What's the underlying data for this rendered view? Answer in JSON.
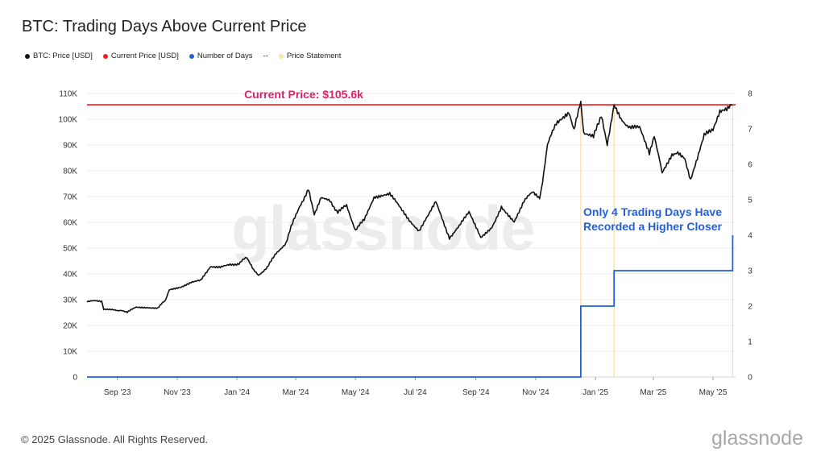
{
  "title": "BTC: Trading Days Above Current Price",
  "legend": [
    {
      "label": "BTC: Price [USD]",
      "color": "#111111",
      "marker": "dot"
    },
    {
      "label": "Current Price [USD]",
      "color": "#e8221f",
      "marker": "dot"
    },
    {
      "label": "Number of Days",
      "color": "#1f5fe0",
      "marker": "dot"
    },
    {
      "label": "--",
      "color": "#444444",
      "marker": "none"
    },
    {
      "label": "Price Statement",
      "color": "#f7e3b0",
      "marker": "dot"
    }
  ],
  "watermark": "glassnode",
  "footer": "© 2025 Glassnode. All Rights Reserved.",
  "brand": "glassnode",
  "colors": {
    "price": "#111111",
    "current": "#e8221f",
    "days": "#1f5fe0",
    "statement": "#f5d79a",
    "current_text": "#e0206a"
  },
  "chart_data": {
    "type": "line",
    "title": "BTC: Trading Days Above Current Price",
    "x_ticks": [
      "Sep '23",
      "Nov '23",
      "Jan '24",
      "Mar '24",
      "May '24",
      "Jul '24",
      "Sep '24",
      "Nov '24",
      "Jan '25",
      "Mar '25",
      "May '25"
    ],
    "x_tick_positions": [
      "2023-09-01",
      "2023-11-01",
      "2024-01-01",
      "2024-03-01",
      "2024-05-01",
      "2024-07-01",
      "2024-09-01",
      "2024-11-01",
      "2025-01-01",
      "2025-03-01",
      "2025-05-01"
    ],
    "xlim": [
      "2023-08-01",
      "2025-05-24"
    ],
    "y_left_ticks": [
      "0",
      "10K",
      "20K",
      "30K",
      "40K",
      "50K",
      "60K",
      "70K",
      "80K",
      "90K",
      "100K",
      "110K"
    ],
    "y_left_lim": [
      0,
      110000
    ],
    "y_right_ticks": [
      "0",
      "1",
      "2",
      "3",
      "4",
      "5",
      "6",
      "7",
      "8"
    ],
    "y_right_lim": [
      0,
      8
    ],
    "grid": "horizontal",
    "current_price": 105600,
    "annotations": {
      "current_price": "Current Price: $105.6k",
      "days_line1": "Only 4 Trading Days Have",
      "days_line2": "Recorded a Higher Closer"
    },
    "series": [
      {
        "name": "BTC: Price [USD]",
        "axis": "left",
        "points": [
          [
            "2023-08-01",
            29300
          ],
          [
            "2023-08-10",
            29500
          ],
          [
            "2023-08-16",
            29200
          ],
          [
            "2023-08-18",
            26200
          ],
          [
            "2023-08-28",
            26000
          ],
          [
            "2023-09-05",
            25800
          ],
          [
            "2023-09-11",
            25100
          ],
          [
            "2023-09-20",
            27100
          ],
          [
            "2023-10-01",
            27000
          ],
          [
            "2023-10-12",
            26800
          ],
          [
            "2023-10-20",
            29700
          ],
          [
            "2023-10-24",
            34000
          ],
          [
            "2023-11-05",
            35000
          ],
          [
            "2023-11-15",
            36500
          ],
          [
            "2023-11-25",
            37500
          ],
          [
            "2023-12-05",
            43000
          ],
          [
            "2023-12-15",
            42500
          ],
          [
            "2023-12-25",
            43500
          ],
          [
            "2024-01-03",
            44000
          ],
          [
            "2024-01-11",
            46500
          ],
          [
            "2024-01-18",
            41500
          ],
          [
            "2024-01-23",
            39500
          ],
          [
            "2024-02-01",
            42500
          ],
          [
            "2024-02-10",
            48000
          ],
          [
            "2024-02-20",
            52000
          ],
          [
            "2024-02-28",
            61000
          ],
          [
            "2024-03-05",
            66000
          ],
          [
            "2024-03-14",
            73000
          ],
          [
            "2024-03-20",
            63000
          ],
          [
            "2024-03-27",
            70000
          ],
          [
            "2024-04-05",
            68000
          ],
          [
            "2024-04-13",
            64000
          ],
          [
            "2024-04-22",
            66500
          ],
          [
            "2024-05-01",
            57000
          ],
          [
            "2024-05-10",
            61000
          ],
          [
            "2024-05-20",
            70000
          ],
          [
            "2024-06-05",
            71000
          ],
          [
            "2024-06-15",
            66000
          ],
          [
            "2024-06-25",
            61000
          ],
          [
            "2024-07-05",
            56500
          ],
          [
            "2024-07-15",
            63000
          ],
          [
            "2024-07-22",
            67800
          ],
          [
            "2024-08-05",
            54000
          ],
          [
            "2024-08-15",
            58500
          ],
          [
            "2024-08-25",
            64000
          ],
          [
            "2024-09-06",
            54000
          ],
          [
            "2024-09-17",
            58000
          ],
          [
            "2024-09-27",
            66000
          ],
          [
            "2024-10-10",
            60500
          ],
          [
            "2024-10-20",
            68000
          ],
          [
            "2024-10-29",
            72000
          ],
          [
            "2024-11-05",
            69000
          ],
          [
            "2024-11-08",
            76000
          ],
          [
            "2024-11-13",
            90000
          ],
          [
            "2024-11-22",
            98500
          ],
          [
            "2024-12-05",
            102000
          ],
          [
            "2024-12-10",
            96000
          ],
          [
            "2024-12-17",
            106500
          ],
          [
            "2024-12-20",
            95000
          ],
          [
            "2024-12-30",
            93000
          ],
          [
            "2025-01-07",
            102000
          ],
          [
            "2025-01-13",
            90500
          ],
          [
            "2025-01-20",
            106000
          ],
          [
            "2025-01-27",
            100000
          ],
          [
            "2025-02-05",
            97000
          ],
          [
            "2025-02-15",
            96500
          ],
          [
            "2025-02-25",
            87000
          ],
          [
            "2025-03-02",
            94000
          ],
          [
            "2025-03-10",
            79000
          ],
          [
            "2025-03-20",
            86500
          ],
          [
            "2025-03-26",
            87500
          ],
          [
            "2025-04-02",
            85000
          ],
          [
            "2025-04-08",
            76500
          ],
          [
            "2025-04-15",
            84500
          ],
          [
            "2025-04-22",
            93500
          ],
          [
            "2025-05-01",
            96500
          ],
          [
            "2025-05-08",
            103000
          ],
          [
            "2025-05-15",
            103500
          ],
          [
            "2025-05-21",
            105600
          ]
        ]
      },
      {
        "name": "Number of Days",
        "axis": "right",
        "points": [
          [
            "2023-08-01",
            0
          ],
          [
            "2024-12-17",
            0
          ],
          [
            "2024-12-17",
            2
          ],
          [
            "2025-01-20",
            2
          ],
          [
            "2025-01-20",
            3
          ],
          [
            "2025-05-21",
            3
          ],
          [
            "2025-05-21",
            4
          ]
        ]
      },
      {
        "name": "Current Price [USD]",
        "axis": "left",
        "value": 105600
      },
      {
        "name": "Price Statement",
        "axis": "right",
        "dates": [
          "2024-12-17",
          "2025-01-20",
          "2025-05-21"
        ]
      }
    ]
  }
}
